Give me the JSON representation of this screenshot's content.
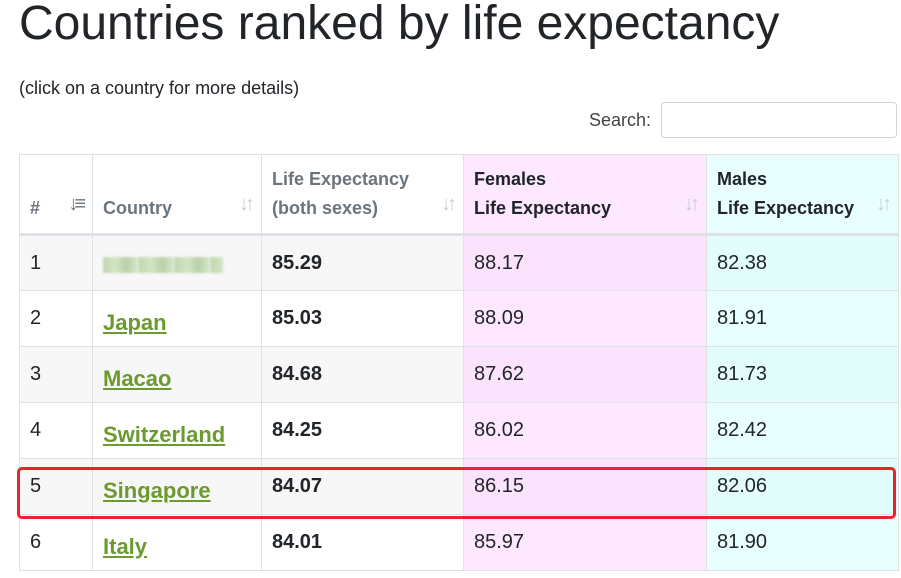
{
  "page": {
    "title": "Countries ranked by life expectancy",
    "hint": "(click on a country for more details)"
  },
  "search": {
    "label": "Search:",
    "value": "",
    "placeholder": ""
  },
  "table": {
    "headers": {
      "rank": "#",
      "country": "Country",
      "both_line1": "Life Expectancy",
      "both_line2": "(both sexes)",
      "female_line1": "Females",
      "female_line2": "Life Expectancy",
      "male_line1": "Males",
      "male_line2": "Life Expectancy"
    },
    "rows": [
      {
        "rank": "1",
        "country": "",
        "both": "85.29",
        "female": "88.17",
        "male": "82.38"
      },
      {
        "rank": "2",
        "country": "Japan",
        "both": "85.03",
        "female": "88.09",
        "male": "81.91"
      },
      {
        "rank": "3",
        "country": "Macao",
        "both": "84.68",
        "female": "87.62",
        "male": "81.73"
      },
      {
        "rank": "4",
        "country": "Switzerland",
        "both": "84.25",
        "female": "86.02",
        "male": "82.42"
      },
      {
        "rank": "5",
        "country": "Singapore",
        "both": "84.07",
        "female": "86.15",
        "male": "82.06"
      },
      {
        "rank": "6",
        "country": "Italy",
        "both": "84.01",
        "female": "85.97",
        "male": "81.90"
      }
    ]
  },
  "icons": {
    "sort_active": "sort-descending-icon",
    "sort_inactive": "sort-both-icon"
  },
  "colors": {
    "link": "#6c9a2e",
    "female_column": "#fde8ff",
    "male_column": "#e8fffe",
    "highlight": "#e8232a"
  }
}
